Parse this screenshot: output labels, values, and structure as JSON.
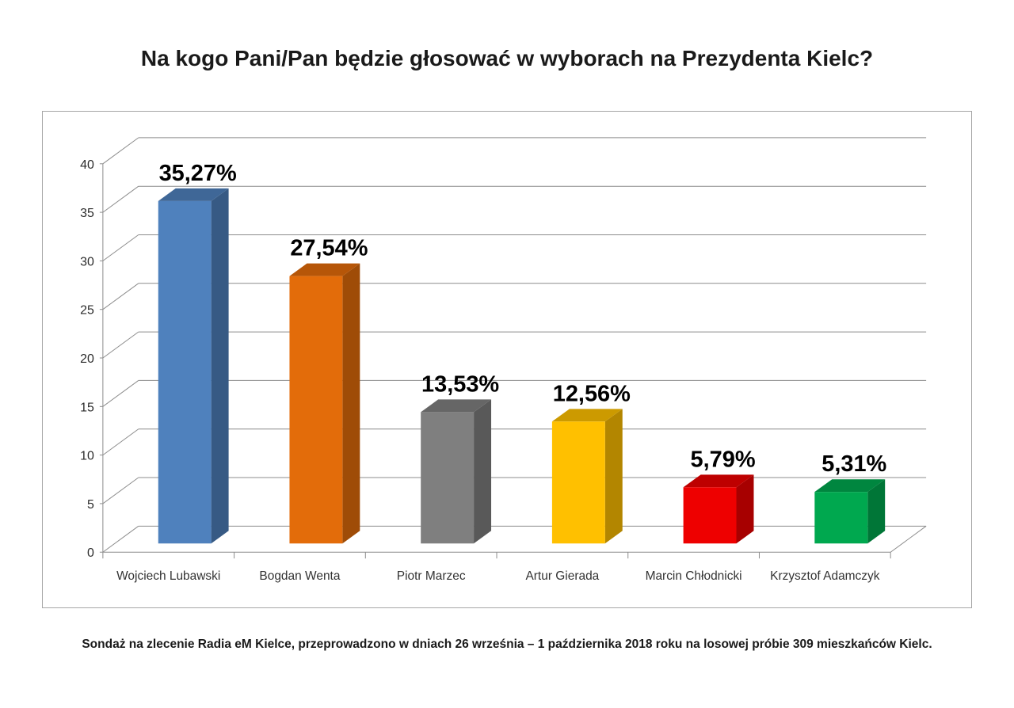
{
  "page": {
    "title": "Na kogo Pani/Pan będzie głosować w wyborach na Prezydenta Kielc?",
    "footer": "Sondaż na zlecenie Radia eM Kielce, przeprowadzono w dniach 26 września – 1 października 2018 roku na losowej próbie 309 mieszkańców Kielc."
  },
  "chart_data": {
    "type": "bar",
    "projection": "3d",
    "title": "Na kogo Pani/Pan będzie głosować w wyborach na Prezydenta Kielc?",
    "categories": [
      "Wojciech Lubawski",
      "Bogdan Wenta",
      "Piotr Marzec",
      "Artur Gierada",
      "Marcin Chłodnicki",
      "Krzysztof Adamczyk"
    ],
    "values": [
      35.27,
      27.54,
      13.53,
      12.56,
      5.79,
      5.31
    ],
    "value_labels": [
      "35,27%",
      "27,54%",
      "13,53%",
      "12,56%",
      "5,79%",
      "5,31%"
    ],
    "bar_colors": [
      "#4F81BD",
      "#E36C0A",
      "#7F7F7F",
      "#FFC000",
      "#EE0000",
      "#00A84F"
    ],
    "xlabel": "",
    "ylabel": "",
    "ylim": [
      0,
      40
    ],
    "yticks": [
      0,
      5,
      10,
      15,
      20,
      25,
      30,
      35,
      40
    ],
    "grid": true,
    "legend": "none",
    "line_color": "#8C8C8C"
  }
}
